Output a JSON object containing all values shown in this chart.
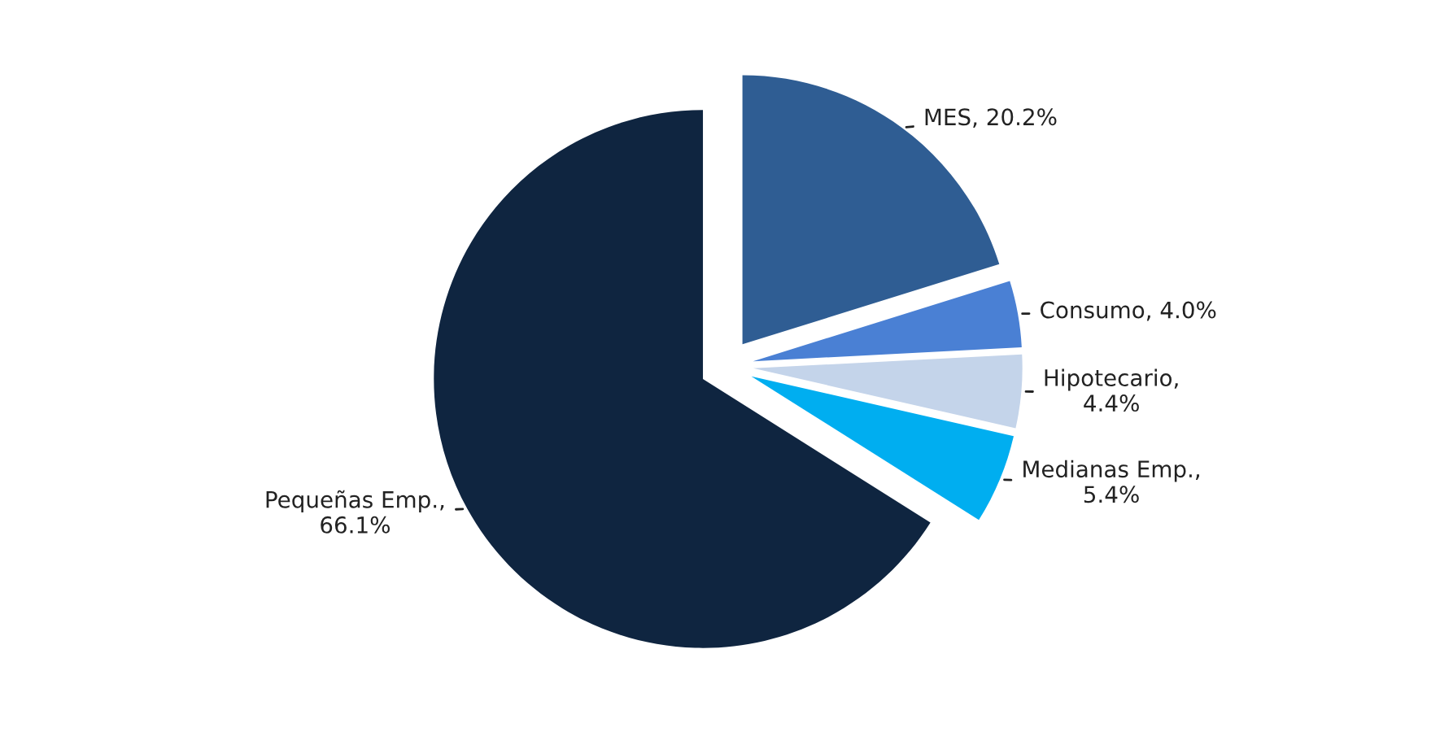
{
  "chart_data": {
    "type": "pie",
    "categories": [
      "MES, 20.2%",
      "Consumo, 4.0%",
      "Hipotecario,\n4.4%",
      "Medianas Emp.,\n5.4%",
      "Pequeñas Emp.,\n66.1%"
    ],
    "values": [
      20.2,
      4.0,
      4.4,
      5.4,
      66.1
    ],
    "colors": [
      "#2f5d93",
      "#4a80d4",
      "#c4d4ea",
      "#00aef0",
      "#0f2540"
    ]
  }
}
